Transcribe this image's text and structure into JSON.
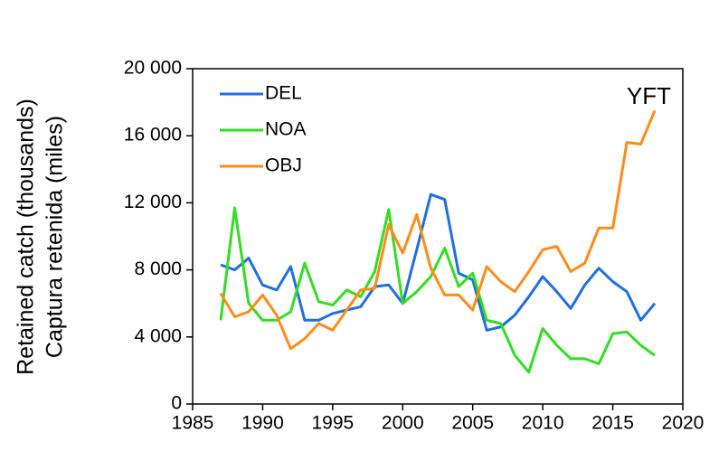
{
  "chart_data": {
    "type": "line",
    "ylabel": [
      "Retained catch (thousands)",
      "Captura retenida (miles)"
    ],
    "annotation": "YFT",
    "x": [
      1987,
      1988,
      1989,
      1990,
      1991,
      1992,
      1993,
      1994,
      1995,
      1996,
      1997,
      1998,
      1999,
      2000,
      2001,
      2002,
      2003,
      2004,
      2005,
      2006,
      2007,
      2008,
      2009,
      2010,
      2011,
      2012,
      2013,
      2014,
      2015,
      2016,
      2017,
      2018
    ],
    "series": [
      {
        "name": "DEL",
        "color": "#1f6fe0",
        "values": [
          8300,
          8000,
          8700,
          7100,
          6800,
          8200,
          5000,
          5000,
          5400,
          5600,
          5800,
          7000,
          7100,
          6000,
          9200,
          12500,
          12200,
          7800,
          7400,
          4400,
          4600,
          5300,
          6400,
          7600,
          6700,
          5700,
          7100,
          8100,
          7300,
          6700,
          5000,
          6000
        ]
      },
      {
        "name": "NOA",
        "color": "#33dd22",
        "values": [
          5000,
          11700,
          6000,
          5000,
          5000,
          5500,
          8400,
          6100,
          5900,
          6800,
          6400,
          7900,
          11600,
          6000,
          6700,
          7600,
          9300,
          7000,
          7800,
          5000,
          4800,
          2900,
          1900,
          4500,
          3500,
          2700,
          2700,
          2400,
          4200,
          4300,
          3500,
          2900
        ]
      },
      {
        "name": "OBJ",
        "color": "#ff8c1a",
        "values": [
          6600,
          5200,
          5500,
          6500,
          5300,
          3300,
          3900,
          4800,
          4400,
          5600,
          6800,
          6900,
          10700,
          9000,
          11300,
          8100,
          6500,
          6500,
          5600,
          8200,
          7300,
          6700,
          7900,
          9200,
          9400,
          7900,
          8400,
          10500,
          10500,
          15600,
          15500,
          17500
        ]
      }
    ],
    "xlim": [
      1985,
      2020
    ],
    "xticks": [
      1985,
      1990,
      1995,
      2000,
      2005,
      2010,
      2015,
      2020
    ],
    "ylim": [
      0,
      20000
    ],
    "yticks": [
      0,
      {
        "value": 4000,
        "label": "4 000"
      },
      {
        "value": 8000,
        "label": "8 000"
      },
      {
        "value": 12000,
        "label": "12 000"
      },
      {
        "value": 16000,
        "label": "16 000"
      },
      {
        "value": 20000,
        "label": "20 000"
      }
    ],
    "legend": "upper left",
    "grid": false
  }
}
